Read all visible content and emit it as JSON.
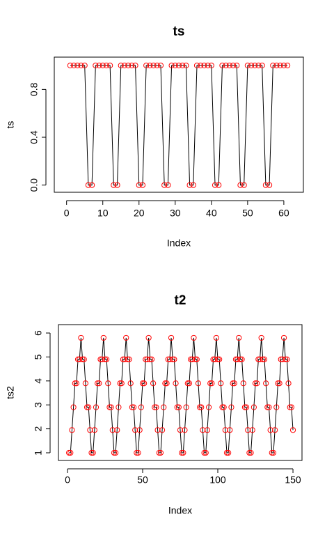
{
  "chart_data": [
    {
      "type": "line",
      "title": "ts",
      "xlabel": "Index",
      "ylabel": "ts",
      "line_color": "#000000",
      "marker_color": "#ff0000",
      "values": [
        1,
        1,
        1,
        1,
        1,
        0,
        0,
        1,
        1,
        1,
        1,
        1,
        0,
        0,
        1,
        1,
        1,
        1,
        1,
        0,
        0,
        1,
        1,
        1,
        1,
        1,
        0,
        0,
        1,
        1,
        1,
        1,
        1,
        0,
        0,
        1,
        1,
        1,
        1,
        1,
        0,
        0,
        1,
        1,
        1,
        1,
        1,
        0,
        0,
        1,
        1,
        1,
        1,
        1,
        0,
        0,
        1,
        1,
        1,
        1,
        1
      ],
      "xlim": [
        -3.4,
        65.4
      ],
      "xticks": [
        0,
        10,
        20,
        30,
        40,
        50,
        60
      ],
      "ylim": [
        -0.06,
        1.07
      ],
      "yticks": [
        {
          "value": 0,
          "label": "0.0"
        },
        {
          "value": 0.4,
          "label": "0.4"
        },
        {
          "value": 0.8,
          "label": "0.8"
        }
      ]
    },
    {
      "type": "line",
      "title": "t2",
      "xlabel": "Index",
      "ylabel": "ts2",
      "line_color": "#000000",
      "marker_color": "#ff0000",
      "values": [
        1,
        1,
        1.95,
        2.9,
        3.9,
        3.9,
        4.9,
        4.9,
        5.8,
        4.9,
        4.9,
        3.9,
        2.9,
        2.9,
        1.95,
        1,
        1,
        1.95,
        2.9,
        3.9,
        3.9,
        4.9,
        4.9,
        5.8,
        4.9,
        4.9,
        3.9,
        2.9,
        2.9,
        1.95,
        1,
        1,
        1.95,
        2.9,
        3.9,
        3.9,
        4.9,
        4.9,
        5.8,
        4.9,
        4.9,
        3.9,
        2.9,
        2.9,
        1.95,
        1,
        1,
        1.95,
        2.9,
        3.9,
        3.9,
        4.9,
        4.9,
        5.8,
        4.9,
        4.9,
        3.9,
        2.9,
        2.9,
        1.95,
        1,
        1,
        1.95,
        2.9,
        3.9,
        3.9,
        4.9,
        4.9,
        5.8,
        4.9,
        4.9,
        3.9,
        2.9,
        2.9,
        1.95,
        1,
        1,
        1.95,
        2.9,
        3.9,
        3.9,
        4.9,
        4.9,
        5.8,
        4.9,
        4.9,
        3.9,
        2.9,
        2.9,
        1.95,
        1,
        1,
        1.95,
        2.9,
        3.9,
        3.9,
        4.9,
        4.9,
        5.8,
        4.9,
        4.9,
        3.9,
        2.9,
        2.9,
        1.95,
        1,
        1,
        1.95,
        2.9,
        3.9,
        3.9,
        4.9,
        4.9,
        5.8,
        4.9,
        4.9,
        3.9,
        2.9,
        2.9,
        1.95,
        1,
        1,
        1.95,
        2.9,
        3.9,
        3.9,
        4.9,
        4.9,
        5.8,
        4.9,
        4.9,
        3.9,
        2.9,
        2.9,
        1.95,
        1,
        1,
        1.95,
        2.9,
        3.9,
        3.9,
        4.9,
        4.9,
        5.8,
        4.9,
        4.9,
        3.9,
        2.9,
        2.9,
        1.95
      ],
      "xlim": [
        -6,
        156
      ],
      "xticks": [
        0,
        50,
        100,
        150
      ],
      "ylim": [
        0.68,
        6.35
      ],
      "yticks": [
        1,
        2,
        3,
        4,
        5,
        6
      ]
    }
  ]
}
